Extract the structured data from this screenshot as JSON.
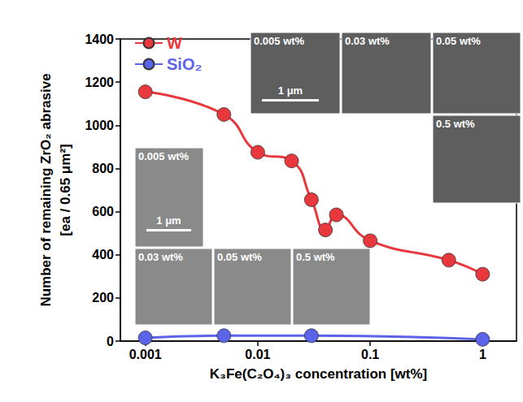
{
  "chart_data": {
    "type": "line",
    "x_label": "K₃Fe(C₂O₄)₃ concentration [wt%]",
    "y_label": [
      "Number of remaining ZrO₂ abrasive",
      "[ea / 0.65 μm²]"
    ],
    "log": "x",
    "grid": false,
    "legend": "top-left",
    "xlim": [
      0.0006,
      2
    ],
    "xticks": [
      0.001,
      0.01,
      0.1,
      1
    ],
    "ylim": [
      0,
      1400
    ],
    "yticks": [
      0,
      200,
      400,
      600,
      800,
      1000,
      1200,
      1400
    ],
    "series": [
      {
        "name": "W",
        "color": "#e8383d",
        "marker": "circle",
        "line_style": "solid",
        "x": [
          0.001,
          0.005,
          0.01,
          0.02,
          0.03,
          0.04,
          0.05,
          0.1,
          0.5,
          1
        ],
        "values": [
          1155,
          1050,
          875,
          835,
          655,
          515,
          585,
          465,
          375,
          310
        ]
      },
      {
        "name": "SiO₂",
        "color": "#5b63e8",
        "marker": "circle",
        "line_style": "solid",
        "x": [
          0.001,
          0.005,
          0.03,
          1
        ],
        "values": [
          15,
          25,
          25,
          8
        ]
      }
    ],
    "annotations": {
      "insets": [
        {
          "series": "W",
          "panels": [
            "0.005 wt%",
            "0.03 wt%",
            "0.05 wt%",
            "0.5 wt%"
          ],
          "scale_bar": "1 μm"
        },
        {
          "series": "SiO₂",
          "panels": [
            "0.005 wt%",
            "0.03 wt%",
            "0.05 wt%",
            "0.5 wt%"
          ],
          "scale_bar": "1 μm"
        }
      ]
    }
  }
}
